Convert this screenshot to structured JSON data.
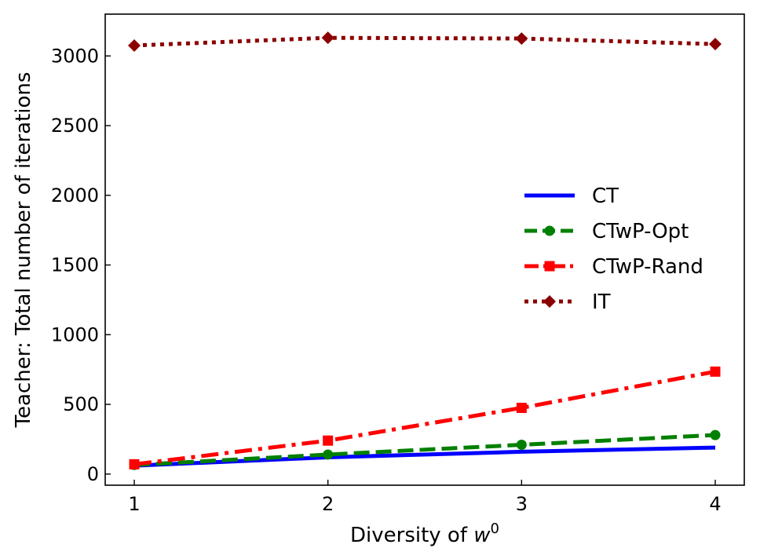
{
  "chart_data": {
    "type": "line",
    "title": "",
    "xlabel": "Diversity of ",
    "xlabel_var": "w",
    "xlabel_sup": "0",
    "ylabel": "Teacher: Total number of iterations",
    "x": [
      1,
      2,
      3,
      4
    ],
    "xlim": [
      0.85,
      4.15
    ],
    "ylim": [
      -80,
      3300
    ],
    "xticks": [
      1,
      2,
      3,
      4
    ],
    "yticks": [
      0,
      500,
      1000,
      1500,
      2000,
      2500,
      3000
    ],
    "grid": false,
    "legend_position": "center-right",
    "series": [
      {
        "name": "CT",
        "values": [
          60,
          120,
          160,
          190
        ],
        "color": "#0000ff",
        "dash": "solid",
        "marker": "none"
      },
      {
        "name": "CTwP-Opt",
        "values": [
          65,
          140,
          210,
          280
        ],
        "color": "#008000",
        "dash": "dashed",
        "marker": "circle"
      },
      {
        "name": "CTwP-Rand",
        "values": [
          70,
          240,
          475,
          735
        ],
        "color": "#ff0000",
        "dash": "dashdot",
        "marker": "square"
      },
      {
        "name": "IT",
        "values": [
          3075,
          3130,
          3125,
          3085
        ],
        "color": "#8b0000",
        "dash": "dotted",
        "marker": "diamond"
      }
    ]
  }
}
